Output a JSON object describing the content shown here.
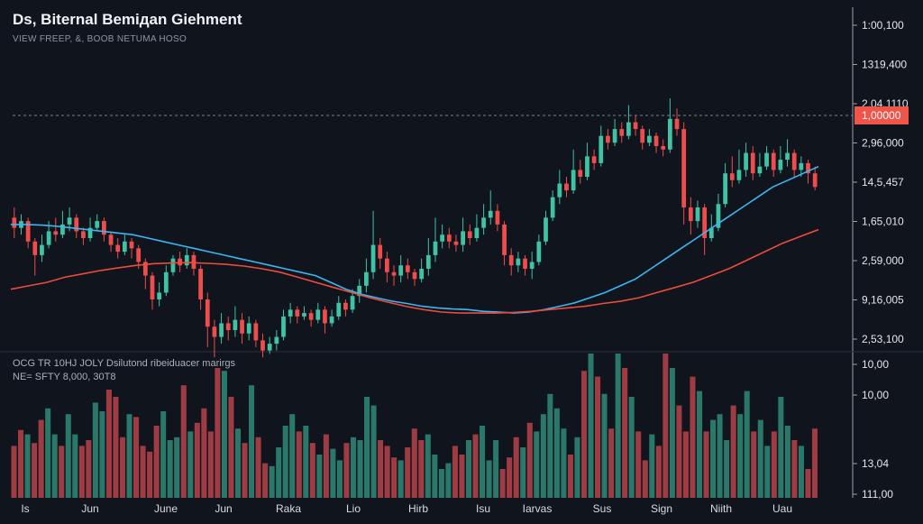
{
  "header": {
    "title": "Ds, Biternal Bemiдan Giehment",
    "subtitle": "VIEW FREEP, &, BOOB NETUMA HOSO"
  },
  "volume_legend": {
    "line1": "OCG TR 10HJ JOLY Dsilutond ribeiduacer marirgs",
    "line2": "NE= SFTY 8,000, 30T8"
  },
  "colors": {
    "background": "#10141c",
    "up_candle": "#3fc3a5",
    "down_candle": "#ef4d4d",
    "ma_fast": "#3ab7f2",
    "ma_slow": "#ee4b3b",
    "price_tag": "#f0554a"
  },
  "price_tag": "1,00000",
  "chart_data": {
    "type": "candlestick",
    "title": "Ds, Biternal Bemiдan Giehment",
    "y_tick_labels": [
      "1:00,100",
      "1319,400",
      "2,04,1110",
      "2,96,000",
      "14,5,457",
      "1,65,010",
      "2,59,000",
      "9,16,005",
      "2,53,100"
    ],
    "volume_tick_labels": [
      "10,00",
      "10,00",
      "13,04",
      "111,00"
    ],
    "x_tick_labels": [
      "Is",
      "Jun",
      "June",
      "Jun",
      "Raka",
      "Lio",
      "Hirb",
      "Isu",
      "Iarvas",
      "Sus",
      "Sign",
      "Niith",
      "Uau"
    ],
    "price_range": [
      10,
      100
    ],
    "volume_range": [
      0,
      100
    ],
    "reference_line": 82,
    "candles": [
      {
        "o": 52,
        "c": 49,
        "h": 55,
        "l": 46
      },
      {
        "o": 49,
        "c": 51,
        "h": 53,
        "l": 47
      },
      {
        "o": 51,
        "c": 45,
        "h": 52,
        "l": 43
      },
      {
        "o": 45,
        "c": 41,
        "h": 46,
        "l": 35
      },
      {
        "o": 41,
        "c": 44,
        "h": 47,
        "l": 39
      },
      {
        "o": 44,
        "c": 48,
        "h": 51,
        "l": 43
      },
      {
        "o": 48,
        "c": 47,
        "h": 52,
        "l": 45
      },
      {
        "o": 47,
        "c": 50,
        "h": 54,
        "l": 46
      },
      {
        "o": 50,
        "c": 52,
        "h": 55,
        "l": 48
      },
      {
        "o": 52,
        "c": 48,
        "h": 53,
        "l": 46
      },
      {
        "o": 48,
        "c": 46,
        "h": 49,
        "l": 44
      },
      {
        "o": 46,
        "c": 49,
        "h": 52,
        "l": 45
      },
      {
        "o": 49,
        "c": 51,
        "h": 53,
        "l": 48
      },
      {
        "o": 51,
        "c": 47,
        "h": 52,
        "l": 45
      },
      {
        "o": 47,
        "c": 44,
        "h": 48,
        "l": 42
      },
      {
        "o": 44,
        "c": 42,
        "h": 46,
        "l": 40
      },
      {
        "o": 42,
        "c": 45,
        "h": 47,
        "l": 41
      },
      {
        "o": 45,
        "c": 43,
        "h": 46,
        "l": 40
      },
      {
        "o": 43,
        "c": 39,
        "h": 44,
        "l": 37
      },
      {
        "o": 39,
        "c": 35,
        "h": 40,
        "l": 31
      },
      {
        "o": 35,
        "c": 28,
        "h": 36,
        "l": 25
      },
      {
        "o": 28,
        "c": 30,
        "h": 33,
        "l": 26
      },
      {
        "o": 30,
        "c": 36,
        "h": 38,
        "l": 29
      },
      {
        "o": 36,
        "c": 40,
        "h": 41,
        "l": 35
      },
      {
        "o": 40,
        "c": 38,
        "h": 42,
        "l": 36
      },
      {
        "o": 38,
        "c": 41,
        "h": 43,
        "l": 37
      },
      {
        "o": 41,
        "c": 37,
        "h": 42,
        "l": 35
      },
      {
        "o": 37,
        "c": 28,
        "h": 38,
        "l": 25
      },
      {
        "o": 28,
        "c": 20,
        "h": 30,
        "l": 14
      },
      {
        "o": 20,
        "c": 17,
        "h": 22,
        "l": 11
      },
      {
        "o": 17,
        "c": 21,
        "h": 24,
        "l": 15
      },
      {
        "o": 21,
        "c": 19,
        "h": 23,
        "l": 16
      },
      {
        "o": 19,
        "c": 22,
        "h": 26,
        "l": 17
      },
      {
        "o": 22,
        "c": 18,
        "h": 24,
        "l": 15
      },
      {
        "o": 18,
        "c": 21,
        "h": 23,
        "l": 16
      },
      {
        "o": 21,
        "c": 16,
        "h": 22,
        "l": 14
      },
      {
        "o": 16,
        "c": 13,
        "h": 18,
        "l": 11
      },
      {
        "o": 13,
        "c": 15,
        "h": 17,
        "l": 12
      },
      {
        "o": 15,
        "c": 17,
        "h": 19,
        "l": 13
      },
      {
        "o": 17,
        "c": 23,
        "h": 25,
        "l": 16
      },
      {
        "o": 23,
        "c": 25,
        "h": 27,
        "l": 21
      },
      {
        "o": 25,
        "c": 23,
        "h": 26,
        "l": 21
      },
      {
        "o": 23,
        "c": 24,
        "h": 26,
        "l": 22
      },
      {
        "o": 24,
        "c": 22,
        "h": 25,
        "l": 20
      },
      {
        "o": 22,
        "c": 25,
        "h": 27,
        "l": 21
      },
      {
        "o": 25,
        "c": 21,
        "h": 26,
        "l": 18
      },
      {
        "o": 21,
        "c": 23,
        "h": 25,
        "l": 20
      },
      {
        "o": 23,
        "c": 27,
        "h": 29,
        "l": 22
      },
      {
        "o": 27,
        "c": 25,
        "h": 28,
        "l": 23
      },
      {
        "o": 25,
        "c": 29,
        "h": 31,
        "l": 24
      },
      {
        "o": 29,
        "c": 32,
        "h": 34,
        "l": 27
      },
      {
        "o": 32,
        "c": 36,
        "h": 40,
        "l": 30
      },
      {
        "o": 36,
        "c": 44,
        "h": 54,
        "l": 34
      },
      {
        "o": 44,
        "c": 40,
        "h": 46,
        "l": 37
      },
      {
        "o": 40,
        "c": 36,
        "h": 42,
        "l": 33
      },
      {
        "o": 36,
        "c": 35,
        "h": 38,
        "l": 32
      },
      {
        "o": 35,
        "c": 38,
        "h": 41,
        "l": 33
      },
      {
        "o": 38,
        "c": 36,
        "h": 40,
        "l": 34
      },
      {
        "o": 36,
        "c": 34,
        "h": 37,
        "l": 32
      },
      {
        "o": 34,
        "c": 37,
        "h": 40,
        "l": 33
      },
      {
        "o": 37,
        "c": 41,
        "h": 46,
        "l": 35
      },
      {
        "o": 41,
        "c": 45,
        "h": 52,
        "l": 39
      },
      {
        "o": 45,
        "c": 47,
        "h": 50,
        "l": 43
      },
      {
        "o": 47,
        "c": 45,
        "h": 49,
        "l": 43
      },
      {
        "o": 45,
        "c": 44,
        "h": 47,
        "l": 42
      },
      {
        "o": 44,
        "c": 48,
        "h": 52,
        "l": 42
      },
      {
        "o": 48,
        "c": 46,
        "h": 50,
        "l": 44
      },
      {
        "o": 46,
        "c": 49,
        "h": 53,
        "l": 45
      },
      {
        "o": 49,
        "c": 52,
        "h": 56,
        "l": 47
      },
      {
        "o": 52,
        "c": 54,
        "h": 60,
        "l": 50
      },
      {
        "o": 54,
        "c": 50,
        "h": 56,
        "l": 48
      },
      {
        "o": 50,
        "c": 41,
        "h": 51,
        "l": 38
      },
      {
        "o": 41,
        "c": 38,
        "h": 43,
        "l": 35
      },
      {
        "o": 38,
        "c": 40,
        "h": 42,
        "l": 36
      },
      {
        "o": 40,
        "c": 37,
        "h": 41,
        "l": 35
      },
      {
        "o": 37,
        "c": 39,
        "h": 42,
        "l": 34
      },
      {
        "o": 39,
        "c": 45,
        "h": 47,
        "l": 38
      },
      {
        "o": 45,
        "c": 52,
        "h": 54,
        "l": 44
      },
      {
        "o": 52,
        "c": 58,
        "h": 60,
        "l": 51
      },
      {
        "o": 58,
        "c": 62,
        "h": 66,
        "l": 56
      },
      {
        "o": 62,
        "c": 60,
        "h": 64,
        "l": 58
      },
      {
        "o": 60,
        "c": 66,
        "h": 72,
        "l": 59
      },
      {
        "o": 66,
        "c": 64,
        "h": 69,
        "l": 62
      },
      {
        "o": 64,
        "c": 70,
        "h": 74,
        "l": 63
      },
      {
        "o": 70,
        "c": 68,
        "h": 72,
        "l": 66
      },
      {
        "o": 68,
        "c": 76,
        "h": 79,
        "l": 67
      },
      {
        "o": 76,
        "c": 74,
        "h": 78,
        "l": 72
      },
      {
        "o": 74,
        "c": 78,
        "h": 81,
        "l": 73
      },
      {
        "o": 78,
        "c": 76,
        "h": 80,
        "l": 74
      },
      {
        "o": 76,
        "c": 80,
        "h": 85,
        "l": 75
      },
      {
        "o": 80,
        "c": 78,
        "h": 82,
        "l": 76
      },
      {
        "o": 78,
        "c": 74,
        "h": 79,
        "l": 72
      },
      {
        "o": 74,
        "c": 76,
        "h": 78,
        "l": 73
      },
      {
        "o": 76,
        "c": 73,
        "h": 77,
        "l": 71
      },
      {
        "o": 73,
        "c": 72,
        "h": 75,
        "l": 70
      },
      {
        "o": 72,
        "c": 81,
        "h": 87,
        "l": 71
      },
      {
        "o": 81,
        "c": 78,
        "h": 84,
        "l": 76
      },
      {
        "o": 78,
        "c": 55,
        "h": 80,
        "l": 50
      },
      {
        "o": 55,
        "c": 51,
        "h": 58,
        "l": 47
      },
      {
        "o": 51,
        "c": 55,
        "h": 57,
        "l": 49
      },
      {
        "o": 55,
        "c": 46,
        "h": 56,
        "l": 41
      },
      {
        "o": 46,
        "c": 49,
        "h": 53,
        "l": 45
      },
      {
        "o": 49,
        "c": 56,
        "h": 59,
        "l": 48
      },
      {
        "o": 56,
        "c": 65,
        "h": 68,
        "l": 55
      },
      {
        "o": 65,
        "c": 63,
        "h": 70,
        "l": 61
      },
      {
        "o": 63,
        "c": 66,
        "h": 72,
        "l": 62
      },
      {
        "o": 66,
        "c": 71,
        "h": 74,
        "l": 64
      },
      {
        "o": 71,
        "c": 65,
        "h": 73,
        "l": 63
      },
      {
        "o": 65,
        "c": 67,
        "h": 71,
        "l": 64
      },
      {
        "o": 67,
        "c": 71,
        "h": 73,
        "l": 66
      },
      {
        "o": 71,
        "c": 66,
        "h": 72,
        "l": 64
      },
      {
        "o": 66,
        "c": 69,
        "h": 73,
        "l": 65
      },
      {
        "o": 69,
        "c": 71,
        "h": 75,
        "l": 67
      },
      {
        "o": 71,
        "c": 66,
        "h": 72,
        "l": 64
      },
      {
        "o": 66,
        "c": 68,
        "h": 70,
        "l": 64
      },
      {
        "o": 68,
        "c": 65,
        "h": 69,
        "l": 62
      },
      {
        "o": 65,
        "c": 61,
        "h": 67,
        "l": 60
      }
    ],
    "ma_fast": [
      50,
      50,
      49.8,
      49.5,
      49,
      48.5,
      48,
      47.5,
      47,
      46,
      45,
      44,
      43,
      42,
      41,
      40,
      39,
      38,
      37,
      36,
      35,
      33,
      31,
      29.5,
      28.5,
      27.5,
      26.8,
      26,
      25.5,
      25.2,
      25,
      24.5,
      24.3,
      24,
      24.3,
      25,
      26,
      27,
      28.5,
      30,
      32,
      34,
      37,
      40,
      43,
      46,
      49,
      52,
      55,
      58,
      61,
      63,
      65,
      67
    ],
    "ma_slow": [
      31,
      32,
      33,
      34.5,
      35.5,
      36.5,
      37.3,
      38,
      38.5,
      38.7,
      38.8,
      38.6,
      38.3,
      37.8,
      37,
      36,
      34.5,
      33,
      31.5,
      30,
      28.5,
      27.2,
      26,
      25,
      24.3,
      24,
      24,
      24,
      24.2,
      24.5,
      25,
      25.5,
      26,
      26.8,
      27.5,
      28.5,
      30,
      31.5,
      33,
      35,
      37,
      39.5,
      42,
      44.5,
      46.5,
      48.5
    ],
    "volumes": [
      36,
      47,
      44,
      38,
      54,
      62,
      44,
      36,
      58,
      44,
      36,
      40,
      66,
      60,
      75,
      70,
      42,
      58,
      56,
      36,
      32,
      50,
      60,
      40,
      42,
      78,
      46,
      52,
      62,
      46,
      90,
      88,
      70,
      48,
      38,
      78,
      42,
      24,
      22,
      35,
      50,
      58,
      46,
      50,
      38,
      30,
      44,
      34,
      26,
      38,
      42,
      40,
      70,
      64,
      40,
      36,
      28,
      26,
      35,
      48,
      40,
      44,
      30,
      20,
      24,
      36,
      30,
      40,
      44,
      50,
      26,
      40,
      20,
      28,
      42,
      35,
      52,
      46,
      58,
      72,
      62,
      48,
      30,
      42,
      88,
      100,
      84,
      72,
      48,
      100,
      90,
      70,
      46,
      26,
      44,
      36,
      100,
      90,
      64,
      46,
      84,
      74,
      46,
      54,
      58,
      40,
      64,
      58,
      74,
      46,
      54,
      36,
      46,
      70,
      50,
      40,
      36,
      20,
      48
    ]
  }
}
